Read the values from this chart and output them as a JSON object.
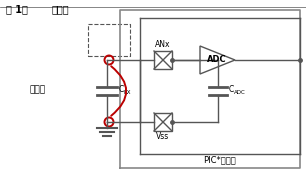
{
  "title1": "图 1：",
  "title2": "自电容",
  "label_zidianrong": "自电容",
  "label_ANx": "ANx",
  "label_ADC": "ADC",
  "label_CRX": "C",
  "label_CRX_sub": "RX",
  "label_CADC": "C",
  "label_CADC_sub": "ADC",
  "label_Vss": "Vss",
  "label_PIC": "PIC*单片机",
  "bg_color": "#ffffff",
  "border_color": "#888888",
  "line_color": "#555555",
  "red_color": "#bb0000",
  "figsize": [
    3.06,
    1.9
  ],
  "dpi": 100
}
